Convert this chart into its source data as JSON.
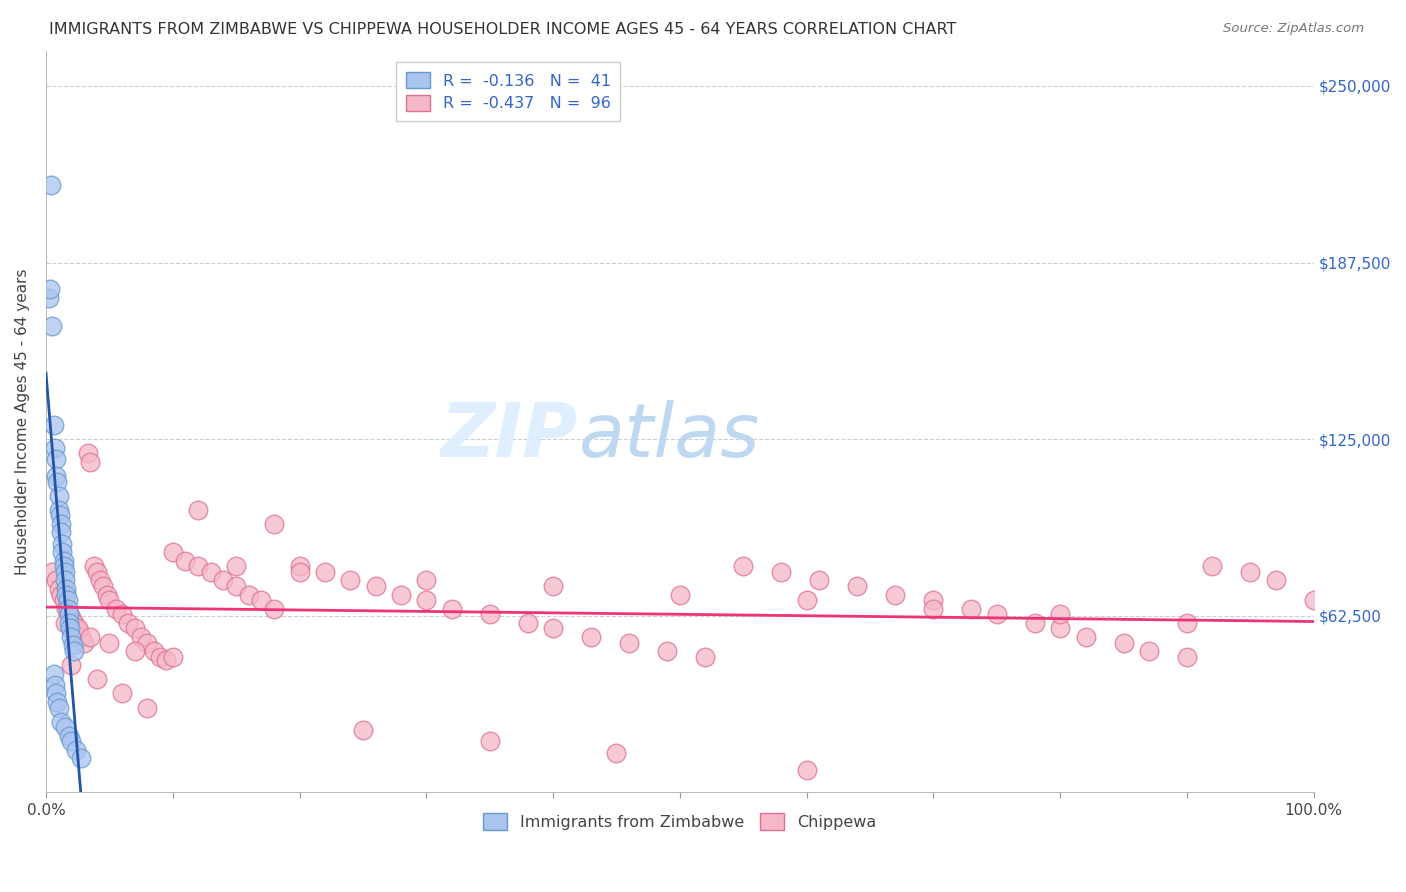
{
  "title": "IMMIGRANTS FROM ZIMBABWE VS CHIPPEWA HOUSEHOLDER INCOME AGES 45 - 64 YEARS CORRELATION CHART",
  "source": "Source: ZipAtlas.com",
  "ylabel": "Householder Income Ages 45 - 64 years",
  "xlim": [
    0,
    1.0
  ],
  "ylim": [
    0,
    262500
  ],
  "yticks": [
    0,
    62500,
    125000,
    187500,
    250000
  ],
  "ytick_labels": [
    "",
    "$62,500",
    "$125,000",
    "$187,500",
    "$250,000"
  ],
  "xticks": [
    0.0,
    0.1,
    0.2,
    0.3,
    0.4,
    0.5,
    0.6,
    0.7,
    0.8,
    0.9,
    1.0
  ],
  "xtick_labels": [
    "0.0%",
    "",
    "",
    "",
    "",
    "",
    "",
    "",
    "",
    "",
    "100.0%"
  ],
  "grid_color": "#c8d0d8",
  "background_color": "#ffffff",
  "legend_R1": "R =  -0.136   N =  41",
  "legend_R2": "R =  -0.437   N =  96",
  "series1_color": "#aac4f0",
  "series1_edge": "#6699cc",
  "series2_color": "#f5b8c8",
  "series2_edge": "#e07090",
  "series1_label": "Immigrants from Zimbabwe",
  "series2_label": "Chippewa",
  "series1_line_color": "#2255aa",
  "series2_line_color": "#ee3377",
  "dashed_line_color": "#88bbee",
  "title_fontsize": 11.5,
  "axis_label_fontsize": 11,
  "tick_fontsize": 11,
  "right_tick_color": "#3366cc",
  "zim_x": [
    0.004,
    0.002,
    0.003,
    0.005,
    0.006,
    0.007,
    0.008,
    0.008,
    0.009,
    0.01,
    0.01,
    0.011,
    0.012,
    0.012,
    0.013,
    0.013,
    0.014,
    0.014,
    0.015,
    0.015,
    0.016,
    0.016,
    0.017,
    0.017,
    0.018,
    0.018,
    0.019,
    0.02,
    0.021,
    0.022,
    0.006,
    0.007,
    0.008,
    0.009,
    0.01,
    0.012,
    0.015,
    0.018,
    0.02,
    0.024,
    0.028
  ],
  "zim_y": [
    215000,
    175000,
    178000,
    165000,
    130000,
    122000,
    118000,
    112000,
    110000,
    105000,
    100000,
    98000,
    95000,
    92000,
    88000,
    85000,
    82000,
    80000,
    78000,
    75000,
    72000,
    70000,
    68000,
    65000,
    63000,
    60000,
    58000,
    55000,
    52000,
    50000,
    42000,
    38000,
    35000,
    32000,
    30000,
    25000,
    23000,
    20000,
    18000,
    15000,
    12000
  ],
  "chip_x": [
    0.005,
    0.008,
    0.01,
    0.012,
    0.014,
    0.016,
    0.018,
    0.02,
    0.022,
    0.024,
    0.026,
    0.028,
    0.03,
    0.033,
    0.035,
    0.038,
    0.04,
    0.043,
    0.045,
    0.048,
    0.05,
    0.055,
    0.06,
    0.065,
    0.07,
    0.075,
    0.08,
    0.085,
    0.09,
    0.095,
    0.1,
    0.11,
    0.12,
    0.13,
    0.14,
    0.15,
    0.16,
    0.17,
    0.18,
    0.2,
    0.22,
    0.24,
    0.26,
    0.28,
    0.3,
    0.32,
    0.35,
    0.38,
    0.4,
    0.43,
    0.46,
    0.49,
    0.52,
    0.55,
    0.58,
    0.61,
    0.64,
    0.67,
    0.7,
    0.73,
    0.75,
    0.78,
    0.8,
    0.82,
    0.85,
    0.87,
    0.9,
    0.92,
    0.95,
    0.97,
    1.0,
    0.015,
    0.025,
    0.035,
    0.05,
    0.07,
    0.1,
    0.15,
    0.2,
    0.3,
    0.4,
    0.5,
    0.6,
    0.7,
    0.8,
    0.9,
    0.02,
    0.04,
    0.06,
    0.08,
    0.12,
    0.18,
    0.25,
    0.35,
    0.45,
    0.6
  ],
  "chip_y": [
    78000,
    75000,
    72000,
    70000,
    68000,
    65000,
    63000,
    62000,
    60000,
    58000,
    57000,
    55000,
    53000,
    120000,
    117000,
    80000,
    78000,
    75000,
    73000,
    70000,
    68000,
    65000,
    63000,
    60000,
    58000,
    55000,
    53000,
    50000,
    48000,
    47000,
    85000,
    82000,
    80000,
    78000,
    75000,
    73000,
    70000,
    68000,
    65000,
    80000,
    78000,
    75000,
    73000,
    70000,
    68000,
    65000,
    63000,
    60000,
    58000,
    55000,
    53000,
    50000,
    48000,
    80000,
    78000,
    75000,
    73000,
    70000,
    68000,
    65000,
    63000,
    60000,
    58000,
    55000,
    53000,
    50000,
    48000,
    80000,
    78000,
    75000,
    68000,
    60000,
    58000,
    55000,
    53000,
    50000,
    48000,
    80000,
    78000,
    75000,
    73000,
    70000,
    68000,
    65000,
    63000,
    60000,
    45000,
    40000,
    35000,
    30000,
    100000,
    95000,
    22000,
    18000,
    14000,
    8000
  ]
}
